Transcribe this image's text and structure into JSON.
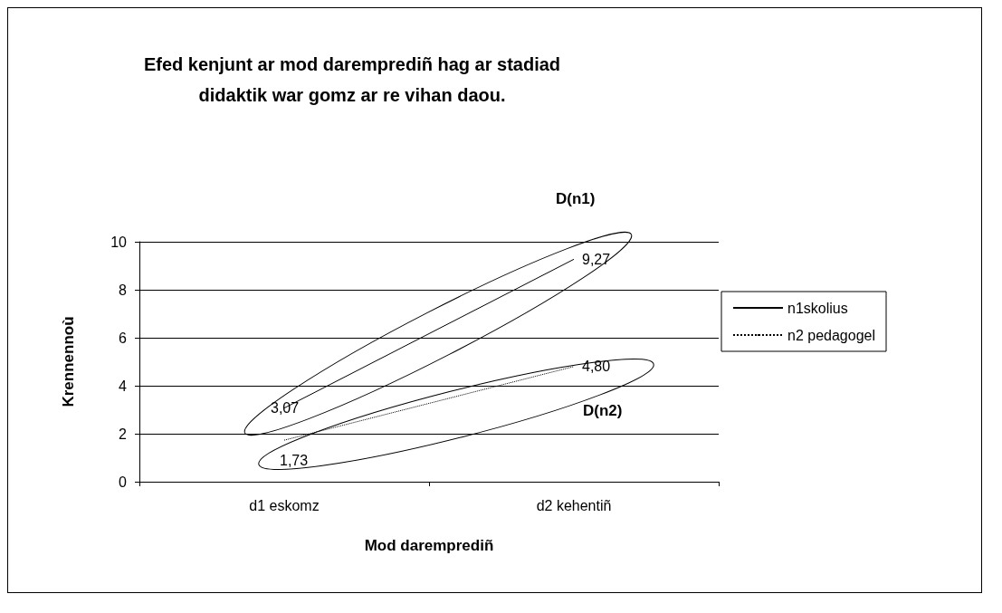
{
  "chart_data": {
    "type": "line",
    "title": "Efed kenjunt ar mod daremprediñ hag ar stadiad\ndidaktik war gomz ar re vihan daou.",
    "xlabel": "Mod daremprediñ",
    "ylabel": "Krennennoù",
    "categories": [
      "d1 eskomz",
      "d2 kehentiñ"
    ],
    "series": [
      {
        "name": "n1skolius",
        "color": "#000000",
        "values": [
          3.07,
          9.27
        ],
        "value_labels": [
          "3,07",
          "9,27"
        ],
        "line_style": "solid"
      },
      {
        "name": "n2 pedagogel",
        "color": "#000000",
        "values": [
          1.73,
          4.8
        ],
        "value_labels": [
          "1,73",
          "4,80"
        ],
        "line_style": "dotted"
      }
    ],
    "ylim": [
      0,
      10
    ],
    "yticks": [
      0,
      2,
      4,
      6,
      8,
      10
    ],
    "grid": "y",
    "legend": "right",
    "marker": "none",
    "annotations": [
      "D(n1)",
      "D(n2)"
    ]
  }
}
